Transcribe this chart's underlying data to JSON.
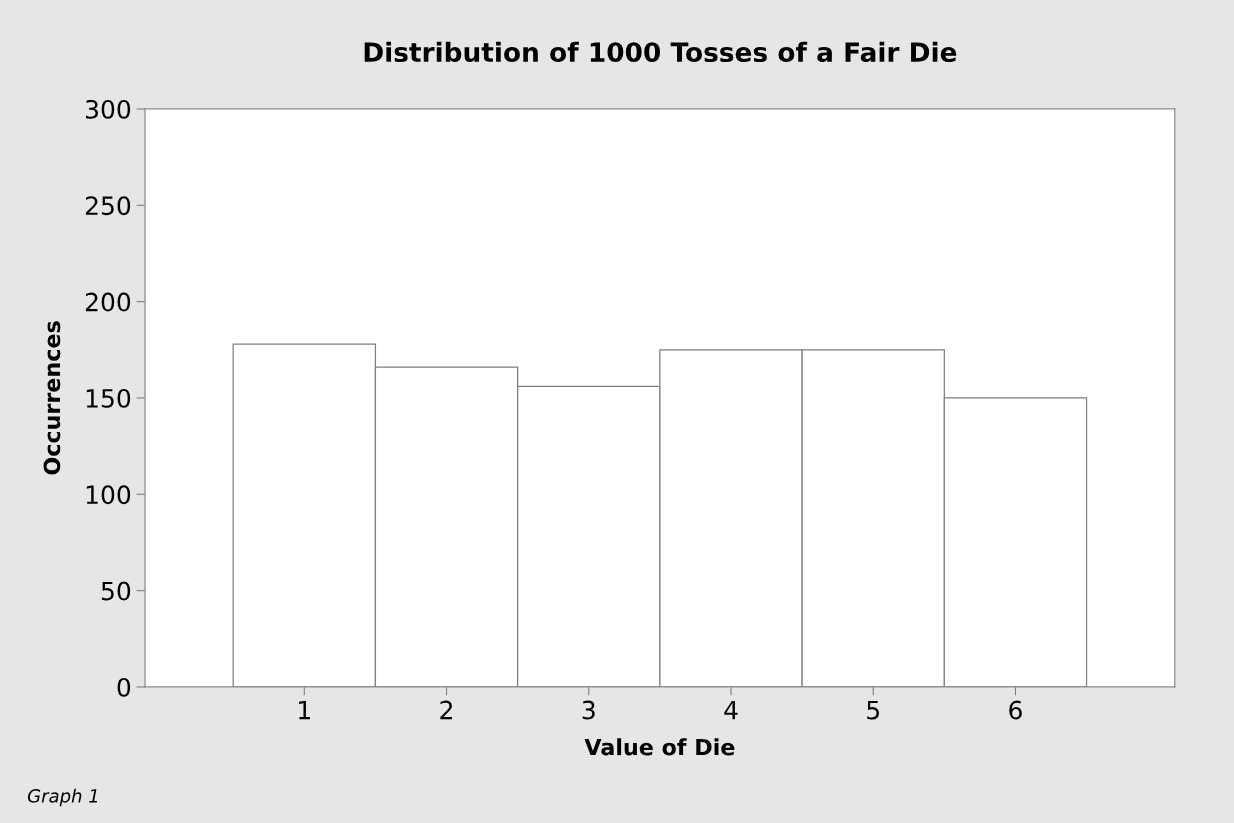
{
  "chart_data": {
    "type": "histogram",
    "title": "Distribution of 1000 Tosses of a Fair Die",
    "xlabel": "Value of Die",
    "ylabel": "Occurrences",
    "bins": [
      0.5,
      1.5,
      2.5,
      3.5,
      4.5,
      5.5,
      6.5
    ],
    "values": [
      178,
      166,
      156,
      175,
      175,
      150
    ],
    "color": "#ffffff",
    "xlim": [
      -0.12,
      7.12
    ],
    "xticks": [
      1,
      2,
      3,
      4,
      5,
      6
    ],
    "ylim": [
      0,
      300
    ],
    "yticks": [
      0,
      50,
      100,
      150,
      200,
      250,
      300
    ],
    "grid": false,
    "annotations": [
      "Graph 1"
    ]
  }
}
